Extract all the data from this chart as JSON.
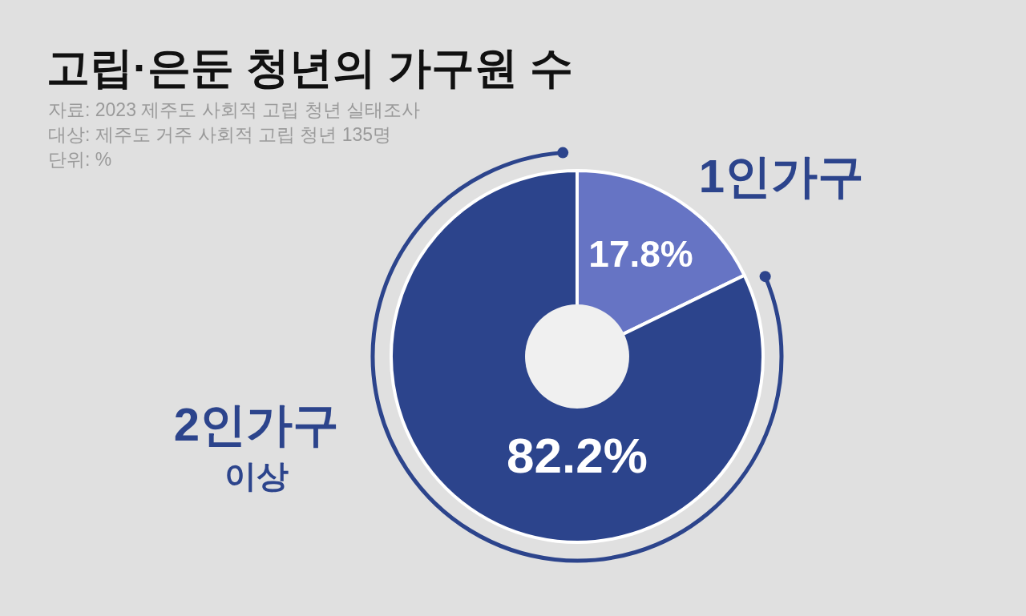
{
  "chart_data": {
    "type": "donut",
    "title": "고립·은둔 청년의 가구원 수",
    "annotations": [
      "자료: 2023 제주도 사회적 고립 청년 실태조사",
      "대상: 제주도 거주 사회적 고립 청년 135명",
      "단위: %"
    ],
    "categories": [
      "1인가구",
      "2인가구 이상"
    ],
    "values": [
      17.8,
      82.2
    ],
    "colors": [
      "#6674c4",
      "#2c448c"
    ],
    "value_labels": [
      "17.8%",
      "82.2%"
    ]
  }
}
